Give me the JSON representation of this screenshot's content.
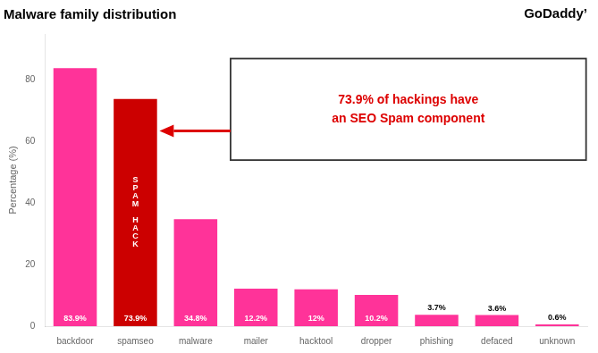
{
  "chart_data": {
    "type": "bar",
    "title": "Malware family distribution",
    "categories": [
      "backdoor",
      "spamseo",
      "malware",
      "mailer",
      "hacktool",
      "dropper",
      "phishing",
      "defaced",
      "unknown"
    ],
    "values": [
      83.9,
      73.9,
      34.8,
      12.2,
      12.0,
      10.2,
      3.7,
      3.6,
      0.6
    ],
    "value_labels": [
      "83.9%",
      "73.9%",
      "34.8%",
      "12.2%",
      "12%",
      "10.2%",
      "3.7%",
      "3.6%",
      "0.6%"
    ],
    "data_labels": true,
    "colors": [
      "#FF3399",
      "#CC0000",
      "#FF3399",
      "#FF3399",
      "#FF3399",
      "#FF3399",
      "#FF3399",
      "#FF3399",
      "#FF3399"
    ],
    "ylabel": "Percentage (%)",
    "ylim": [
      0,
      95
    ],
    "yticks": [
      0,
      20,
      40,
      60,
      80
    ],
    "grid": false,
    "annotations": [
      {
        "text": "GoDaddyʼ"
      },
      {
        "text": "73.9% of hackings have\nan SEO Spam component",
        "color": "#DD0000"
      },
      {
        "text": "S\nP\nA\nM\n \nH\nA\nC\nK"
      }
    ]
  }
}
